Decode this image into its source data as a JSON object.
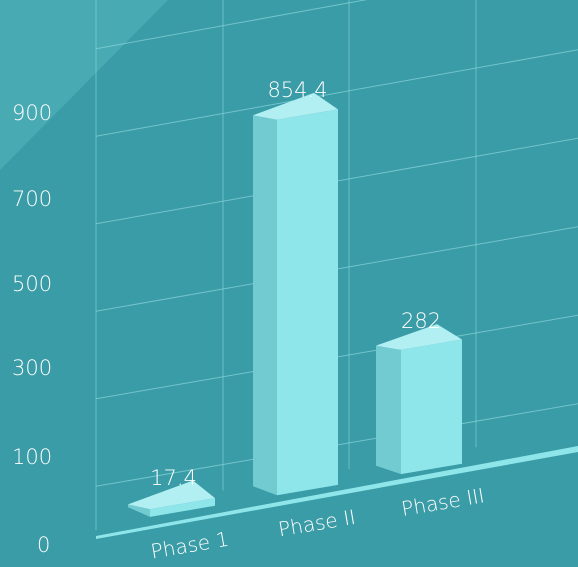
{
  "colors": {
    "background": "#3a9ca6",
    "corner_highlight": "#48aab2",
    "grid": "#86d2d8",
    "bar_front": "#8ee6eb",
    "bar_top": "#b2eff2",
    "bar_side": "#72cbd0",
    "floor": "#8ee6eb"
  },
  "chart_data": {
    "type": "bar",
    "categories": [
      "Phase 1",
      "Phase II",
      "Phase III"
    ],
    "values": [
      17.4,
      854.4,
      282
    ],
    "value_labels": [
      "17.4",
      "854.4",
      "282"
    ],
    "y_ticks": [
      "0",
      "100",
      "300",
      "500",
      "700",
      "900"
    ],
    "ylim": [
      0,
      1000
    ],
    "grid": true,
    "style": "3d-perspective"
  }
}
